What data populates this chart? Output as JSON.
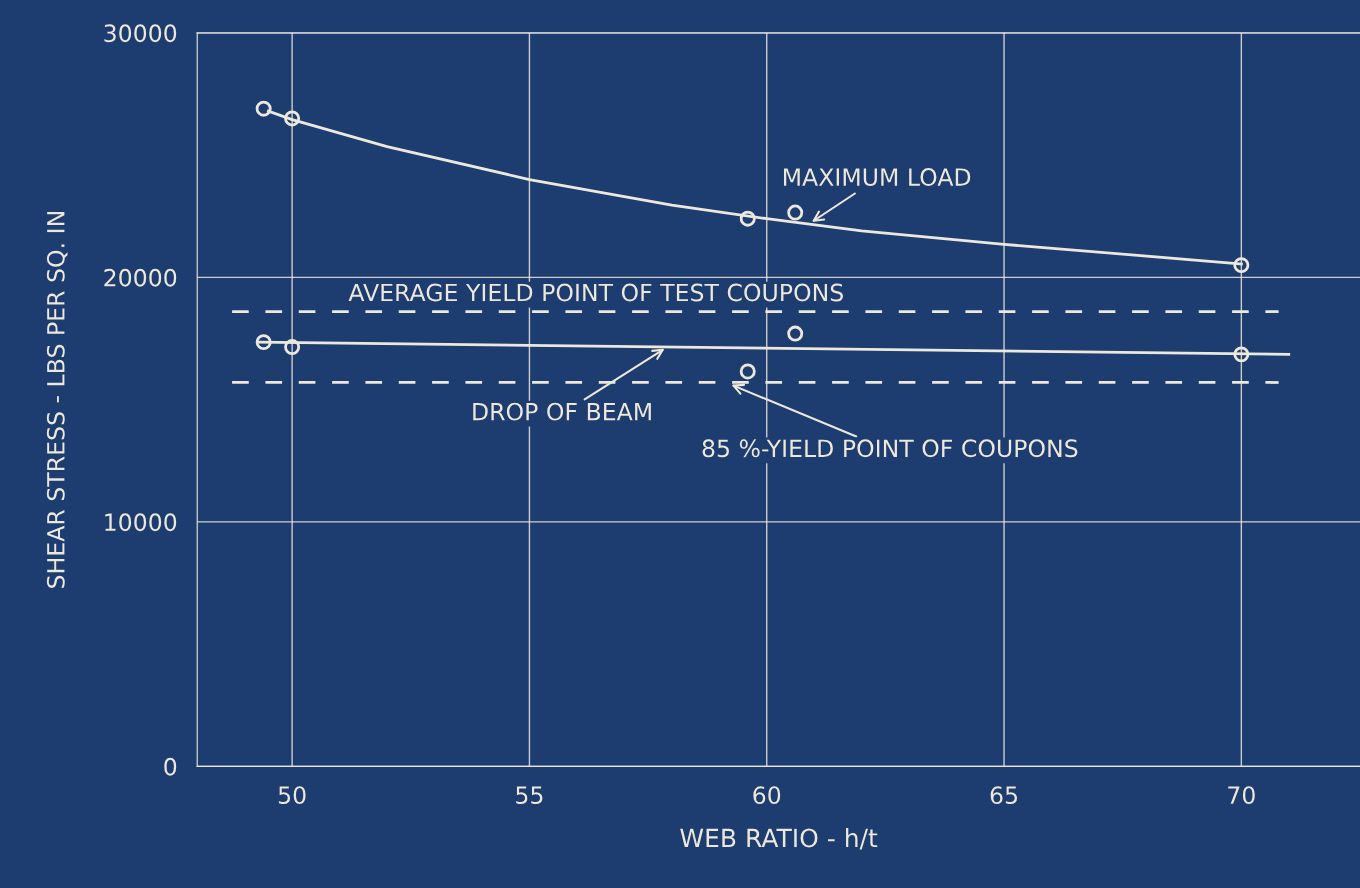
{
  "chart_data": {
    "type": "scatter",
    "xlabel": "WEB RATIO - h/t",
    "ylabel": "SHEAR STRESS - LBS PER SQ. IN",
    "xlim": [
      48,
      72.5
    ],
    "ylim": [
      0,
      30000
    ],
    "xticks": [
      50,
      55,
      60,
      65,
      70
    ],
    "yticks": [
      0,
      10000,
      20000,
      30000
    ],
    "grid": true,
    "marker": "circle",
    "series": [
      {
        "color": "#ece8dc",
        "x": [
          49.4,
          50,
          59.6,
          60.6,
          70
        ],
        "values": [
          26900,
          26500,
          22400,
          22650,
          20500
        ]
      },
      {
        "type": "line",
        "color": "#ece8dc",
        "marker": "none",
        "x": [
          49.5,
          50,
          52,
          55,
          58,
          60,
          62,
          65,
          70
        ],
        "values": [
          26800,
          26450,
          25350,
          24000,
          22950,
          22400,
          21900,
          21350,
          20550
        ]
      },
      {
        "color": "#ece8dc",
        "x": [
          49.4,
          50,
          59.6,
          60.6,
          70
        ],
        "values": [
          17350,
          17150,
          16150,
          17700,
          16850
        ]
      },
      {
        "type": "line",
        "color": "#ece8dc",
        "marker": "none",
        "x": [
          49.3,
          71
        ],
        "values": [
          17350,
          16850
        ]
      }
    ],
    "ref_lines": [
      {
        "axis": "y",
        "value": 18600,
        "label": "AVERAGE YIELD POINT OF TEST COUPONS",
        "color": "#ece8dc",
        "line_style": "dashed"
      },
      {
        "axis": "y",
        "value": 15700,
        "color": "#ece8dc",
        "line_style": "dashed"
      }
    ],
    "annotations": [
      {
        "text": "MAXIMUM LOAD",
        "x": 60.9,
        "y": 22200
      },
      {
        "text": "DROP OF BEAM",
        "x": 57.9,
        "y": 17150
      },
      {
        "text": "85 %-YIELD POINT OF COUPONS",
        "x": 59.2,
        "y": 15650
      }
    ]
  }
}
